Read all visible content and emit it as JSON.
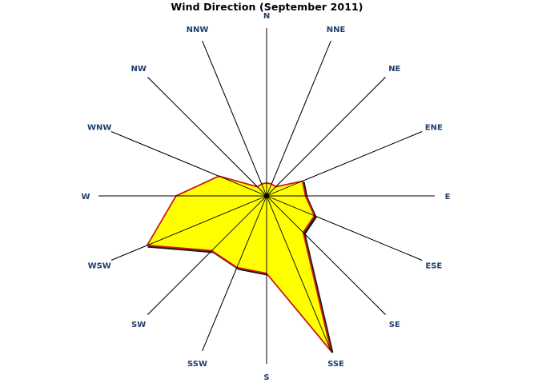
{
  "chart_data": {
    "type": "radar",
    "title": "Wind Direction (September 2011)",
    "directions": [
      "N",
      "NNE",
      "NE",
      "ENE",
      "E",
      "ESE",
      "SE",
      "SSE",
      "S",
      "SSW",
      "SW",
      "WSW",
      "W",
      "WNW",
      "NW",
      "NNW"
    ],
    "values": [
      1,
      1,
      1,
      3,
      3,
      4,
      4,
      13,
      6,
      6,
      6,
      10,
      7,
      4,
      1,
      1
    ],
    "rmax": 13,
    "grid": "radial spokes only",
    "legend": "none"
  },
  "colors": {
    "fill": "#ffff00",
    "outline": "#d11a1a",
    "shadow": "#1a1a1a",
    "spoke": "#000000",
    "label": "#1f3f6b",
    "title": "#000000"
  }
}
